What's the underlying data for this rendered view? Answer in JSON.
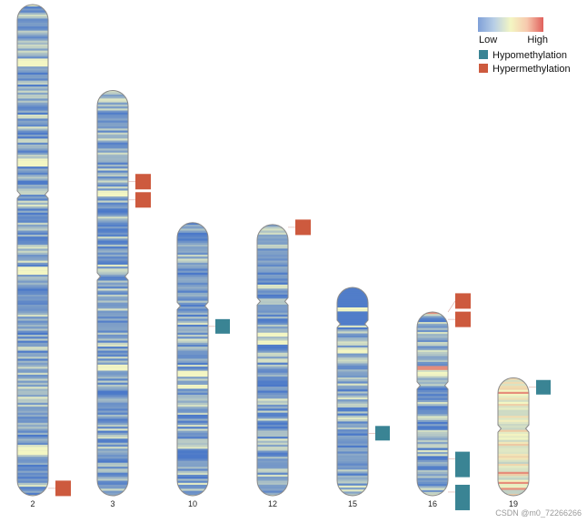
{
  "chart_data": {
    "type": "heatmap",
    "title": "",
    "colors": {
      "low": "#4a78c9",
      "mid": "#f3f6c3",
      "high": "#e0605c",
      "hypo": "#3a8494",
      "hyper": "#cd5a3e",
      "outline": "#8a8a8a"
    },
    "colorbar": {
      "low_label": "Low",
      "high_label": "High",
      "stops": [
        "#7fa0d8",
        "#b9cfe6",
        "#f3f6c3",
        "#f7c9ae",
        "#e0605c"
      ]
    },
    "legend": {
      "placement": "top-right",
      "items": [
        {
          "label": "Hypomethylation",
          "color": "#3a8494"
        },
        {
          "label": "Hypermethylation",
          "color": "#cd5a3e"
        }
      ]
    },
    "chromosomes": [
      {
        "name": "2",
        "length": 1.0,
        "centromere": 0.387,
        "bright_bands": [
          0.115,
          0.32,
          0.54,
          0.905
        ],
        "hot_bands": [],
        "dmrs": [
          {
            "type": "hyper",
            "pos": 0.985
          }
        ]
      },
      {
        "name": "3",
        "length": 0.825,
        "centromere": 0.459,
        "bright_bands": [
          0.25,
          0.68
        ],
        "hot_bands": [],
        "dmrs": [
          {
            "type": "hyper",
            "pos": 0.225
          },
          {
            "type": "hyper",
            "pos": 0.27
          }
        ]
      },
      {
        "name": "10",
        "length": 0.556,
        "centromere": 0.305,
        "bright_bands": [
          0.55,
          0.6
        ],
        "hot_bands": [],
        "dmrs": [
          {
            "type": "hypo",
            "pos": 0.38
          }
        ]
      },
      {
        "name": "12",
        "length": 0.552,
        "centromere": 0.283,
        "bright_bands": [
          0.4,
          0.43
        ],
        "hot_bands": [],
        "dmrs": [
          {
            "type": "hyper",
            "pos": 0.01
          }
        ]
      },
      {
        "name": "15",
        "length": 0.424,
        "centromere": 0.175,
        "bright_bands": [
          0.1,
          0.3
        ],
        "hot_bands": [],
        "acrocentric_block": true,
        "dmrs": [
          {
            "type": "hypo",
            "pos": 0.7
          }
        ]
      },
      {
        "name": "16",
        "length": 0.374,
        "centromere": 0.4,
        "bright_bands": [
          0.3,
          0.33
        ],
        "hot_bands": [
          0.0,
          0.3
        ],
        "dmrs": [
          {
            "type": "hyper",
            "pos": -0.06
          },
          {
            "type": "hyper",
            "pos": 0.04
          },
          {
            "type": "hypo",
            "pos": 0.8
          },
          {
            "type": "hypo",
            "pos": 0.98
          }
        ]
      },
      {
        "name": "19",
        "length": 0.24,
        "centromere": 0.43,
        "bright_bands": [
          0.1,
          0.2
        ],
        "hot_bands": [
          0.12,
          0.45,
          0.8,
          0.88,
          0.93
        ],
        "warm": true,
        "dmrs": [
          {
            "type": "hypo",
            "pos": 0.08
          }
        ]
      }
    ]
  },
  "watermark": "CSDN @m0_72266266"
}
